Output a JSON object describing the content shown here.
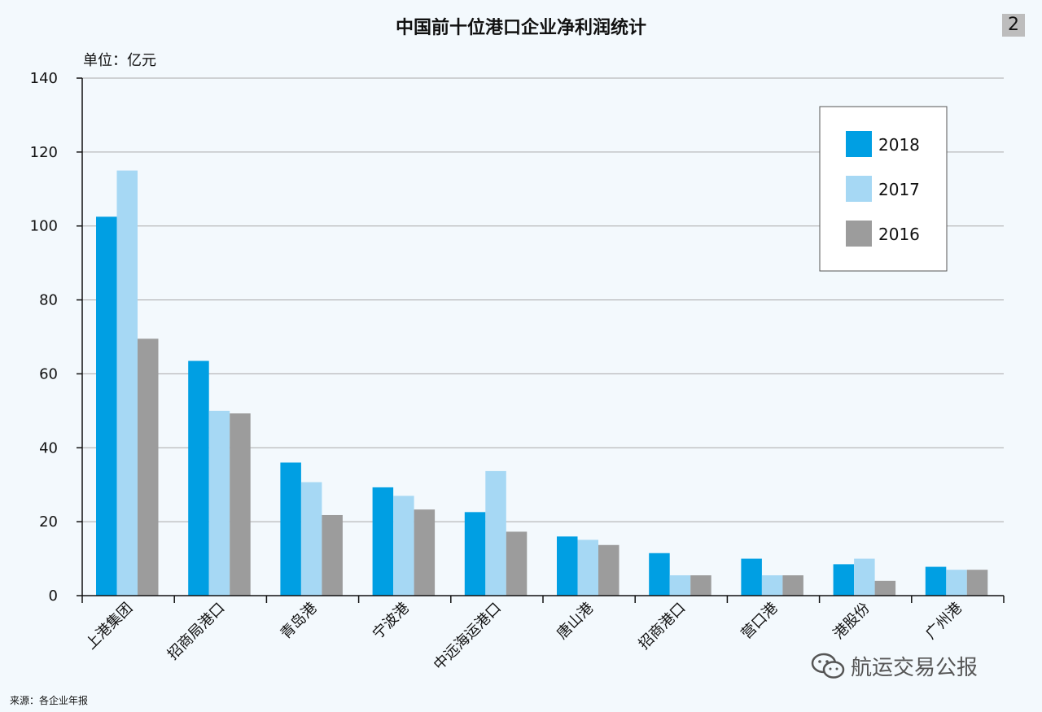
{
  "page_badge": "2",
  "unit_label": "单位：亿元",
  "source": "来源：各企业年报",
  "watermark": "航运交易公报",
  "colors": {
    "2018": "#009fe3",
    "2017": "#a6d8f4",
    "2016": "#9c9c9c"
  },
  "chart_data": {
    "type": "bar",
    "title": "中国前十位港口企业净利润统计",
    "ylabel": "单位：亿元",
    "ylim": [
      0,
      140
    ],
    "yticks": [
      0,
      20,
      40,
      60,
      80,
      100,
      120,
      140
    ],
    "categories": [
      "上港集团",
      "招商局港口",
      "青岛港",
      "宁波港",
      "中远海运港口",
      "唐山港",
      "招商港口",
      "营口港",
      "港股份",
      "广州港"
    ],
    "series": [
      {
        "name": "2018",
        "values": [
          102.5,
          63.5,
          36,
          29.3,
          22.6,
          16,
          11.5,
          10,
          8.5,
          7.8
        ]
      },
      {
        "name": "2017",
        "values": [
          115,
          50,
          30.7,
          27,
          33.7,
          15.1,
          5.5,
          5.5,
          10,
          7
        ]
      },
      {
        "name": "2016",
        "values": [
          69.5,
          49.3,
          21.8,
          23.3,
          17.3,
          13.7,
          5.5,
          5.5,
          4,
          7
        ]
      }
    ],
    "grid": true,
    "legend_position": "top-right"
  }
}
